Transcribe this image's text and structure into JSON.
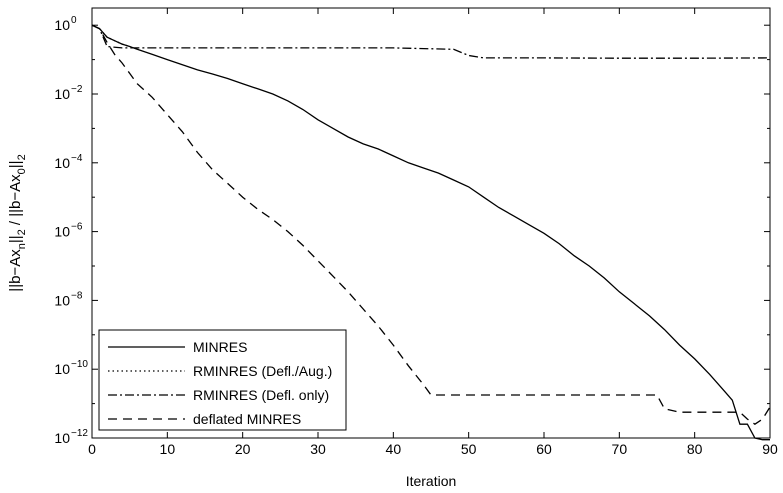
{
  "chart_data": {
    "type": "line",
    "xlabel": "Iteration",
    "ylabel": "||b−Ax_n||_2 / ||b−Ax_0||_2",
    "xlim": [
      0,
      90
    ],
    "ylim_log10": [
      -12,
      0.5
    ],
    "yscale": "log",
    "grid": false,
    "legend_position": "bottom-left",
    "x_ticks": [
      0,
      10,
      20,
      30,
      40,
      50,
      60,
      70,
      80,
      90
    ],
    "y_tick_exponents": [
      0,
      -2,
      -4,
      -6,
      -8,
      -10,
      -12
    ],
    "series": [
      {
        "name": "MINRES",
        "style": "solid",
        "points_log10": [
          [
            0,
            0
          ],
          [
            1,
            -0.1
          ],
          [
            2,
            -0.35
          ],
          [
            3,
            -0.45
          ],
          [
            4,
            -0.55
          ],
          [
            5,
            -0.62
          ],
          [
            6,
            -0.7
          ],
          [
            8,
            -0.85
          ],
          [
            10,
            -1.0
          ],
          [
            12,
            -1.15
          ],
          [
            14,
            -1.3
          ],
          [
            16,
            -1.42
          ],
          [
            18,
            -1.55
          ],
          [
            20,
            -1.7
          ],
          [
            22,
            -1.85
          ],
          [
            24,
            -2.0
          ],
          [
            26,
            -2.2
          ],
          [
            28,
            -2.45
          ],
          [
            30,
            -2.75
          ],
          [
            32,
            -3.0
          ],
          [
            34,
            -3.25
          ],
          [
            36,
            -3.45
          ],
          [
            38,
            -3.6
          ],
          [
            40,
            -3.8
          ],
          [
            42,
            -4.0
          ],
          [
            44,
            -4.15
          ],
          [
            46,
            -4.3
          ],
          [
            48,
            -4.5
          ],
          [
            50,
            -4.7
          ],
          [
            52,
            -5.0
          ],
          [
            54,
            -5.3
          ],
          [
            56,
            -5.55
          ],
          [
            58,
            -5.8
          ],
          [
            60,
            -6.05
          ],
          [
            62,
            -6.35
          ],
          [
            64,
            -6.7
          ],
          [
            66,
            -7.0
          ],
          [
            68,
            -7.35
          ],
          [
            70,
            -7.75
          ],
          [
            72,
            -8.1
          ],
          [
            74,
            -8.45
          ],
          [
            76,
            -8.85
          ],
          [
            78,
            -9.3
          ],
          [
            80,
            -9.7
          ],
          [
            82,
            -10.15
          ],
          [
            84,
            -10.65
          ],
          [
            85,
            -10.9
          ],
          [
            86,
            -11.6
          ],
          [
            87,
            -11.6
          ],
          [
            88,
            -12.0
          ],
          [
            89,
            -12.05
          ],
          [
            90,
            -12.05
          ]
        ]
      },
      {
        "name": "RMINRES (Defl./Aug.)",
        "style": "dotted",
        "points_log10": [
          [
            0,
            0
          ],
          [
            1,
            -0.1
          ],
          [
            2,
            -0.35
          ],
          [
            3,
            -0.45
          ],
          [
            4,
            -0.55
          ],
          [
            5,
            -0.62
          ]
        ]
      },
      {
        "name": "RMINRES (Defl. only)",
        "style": "dashdot",
        "points_log10": [
          [
            0,
            0
          ],
          [
            1,
            -0.1
          ],
          [
            2,
            -0.62
          ],
          [
            4,
            -0.66
          ],
          [
            10,
            -0.66
          ],
          [
            20,
            -0.66
          ],
          [
            30,
            -0.66
          ],
          [
            40,
            -0.66
          ],
          [
            48,
            -0.7
          ],
          [
            50,
            -0.88
          ],
          [
            52,
            -0.95
          ],
          [
            60,
            -0.95
          ],
          [
            70,
            -0.96
          ],
          [
            80,
            -0.96
          ],
          [
            90,
            -0.95
          ]
        ]
      },
      {
        "name": "deflated MINRES",
        "style": "dashed",
        "points_log10": [
          [
            0,
            0
          ],
          [
            1,
            -0.1
          ],
          [
            2,
            -0.5
          ],
          [
            3,
            -0.85
          ],
          [
            4,
            -1.1
          ],
          [
            5,
            -1.4
          ],
          [
            6,
            -1.7
          ],
          [
            8,
            -2.1
          ],
          [
            10,
            -2.6
          ],
          [
            12,
            -3.1
          ],
          [
            14,
            -3.7
          ],
          [
            16,
            -4.2
          ],
          [
            18,
            -4.6
          ],
          [
            20,
            -5.0
          ],
          [
            22,
            -5.35
          ],
          [
            24,
            -5.65
          ],
          [
            26,
            -6.0
          ],
          [
            28,
            -6.4
          ],
          [
            30,
            -6.85
          ],
          [
            32,
            -7.3
          ],
          [
            34,
            -7.75
          ],
          [
            36,
            -8.25
          ],
          [
            38,
            -8.75
          ],
          [
            40,
            -9.3
          ],
          [
            42,
            -9.9
          ],
          [
            44,
            -10.45
          ],
          [
            45,
            -10.75
          ],
          [
            46,
            -10.75
          ],
          [
            50,
            -10.75
          ],
          [
            60,
            -10.75
          ],
          [
            70,
            -10.75
          ],
          [
            75,
            -10.75
          ],
          [
            76,
            -11.15
          ],
          [
            78,
            -11.25
          ],
          [
            80,
            -11.25
          ],
          [
            86,
            -11.25
          ],
          [
            87,
            -11.45
          ],
          [
            88,
            -11.6
          ],
          [
            89,
            -11.45
          ],
          [
            90,
            -11.1
          ]
        ]
      }
    ]
  }
}
